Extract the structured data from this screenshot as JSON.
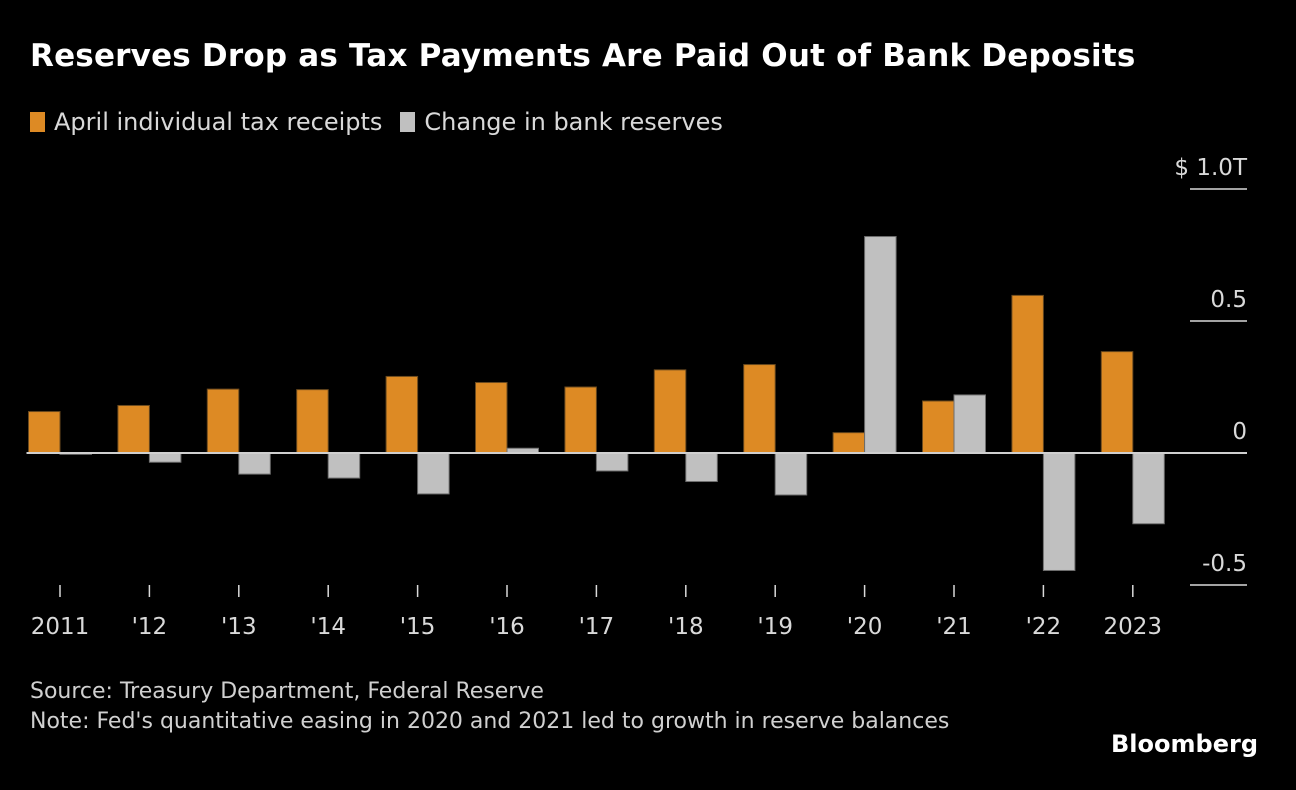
{
  "title": "Reserves Drop as Tax Payments Are Paid Out of Bank Deposits",
  "legend": [
    {
      "label": "April individual tax receipts",
      "color": "#dd8a24"
    },
    {
      "label": "Change in bank reserves",
      "color": "#c0c0c0"
    }
  ],
  "footer": {
    "source": "Source: Treasury Department, Federal Reserve",
    "note": "Note: Fed's quantitative easing in 2020 and 2021 led to growth in reserve balances"
  },
  "brand": "Bloomberg",
  "chart_data": {
    "type": "bar",
    "title": "Reserves Drop as Tax Payments Are Paid Out of Bank Deposits",
    "xlabel": "",
    "ylabel": "",
    "unit": "$ trillions",
    "categories": [
      "2011",
      "'12",
      "'13",
      "'14",
      "'15",
      "'16",
      "'17",
      "'18",
      "'19",
      "'20",
      "'21",
      "'22",
      "2023"
    ],
    "series": [
      {
        "name": "April individual tax receipts",
        "color": "#dd8a24",
        "values": [
          0.157,
          0.18,
          0.242,
          0.24,
          0.29,
          0.267,
          0.25,
          0.315,
          0.335,
          0.077,
          0.197,
          0.597,
          0.384
        ]
      },
      {
        "name": "Change in bank reserves",
        "color": "#c0c0c0",
        "values": [
          -0.005,
          -0.035,
          -0.08,
          -0.095,
          -0.155,
          0.018,
          -0.068,
          -0.108,
          -0.159,
          0.82,
          0.22,
          -0.445,
          -0.268
        ]
      }
    ],
    "y_ticks": [
      {
        "value": 1.0,
        "label": "$ 1.0T"
      },
      {
        "value": 0.5,
        "label": "0.5"
      },
      {
        "value": 0,
        "label": "0"
      },
      {
        "value": -0.5,
        "label": "-0.5"
      }
    ],
    "ylim": [
      -0.5,
      1.0
    ],
    "grid": false,
    "legend_position": "top-left",
    "axis_position": "right"
  }
}
